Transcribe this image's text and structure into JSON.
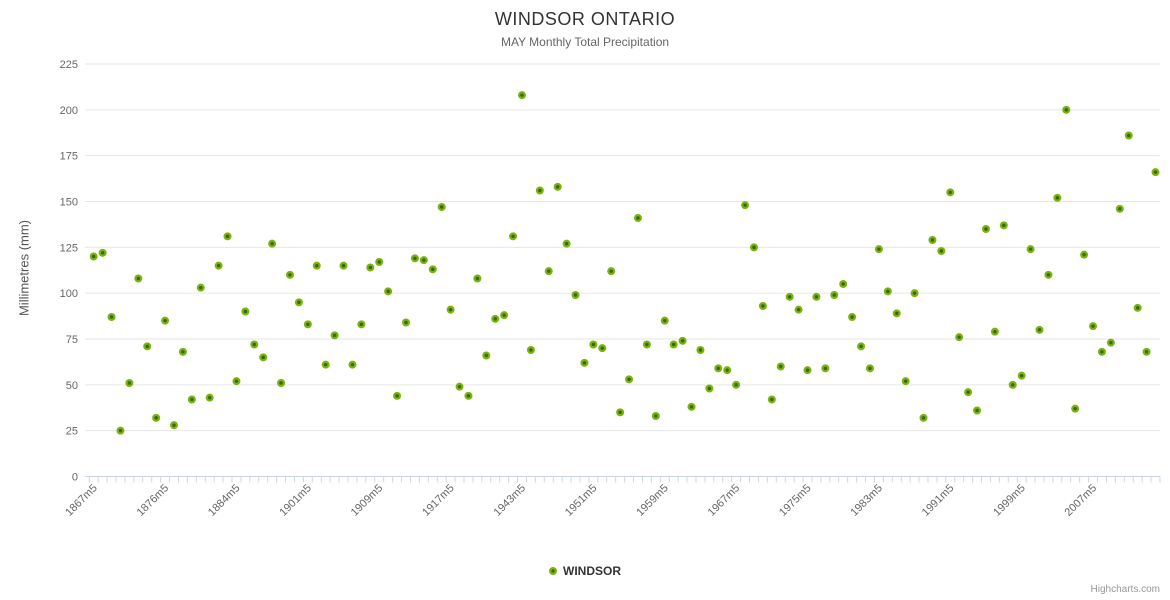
{
  "chart": {
    "title": "WINDSOR ONTARIO",
    "subtitle": "MAY Monthly Total Precipitation",
    "y_axis_title": "Millimetres (mm)",
    "legend_label": "WINDSOR",
    "credits": "Highcharts.com"
  },
  "colors": {
    "point_fill": "#7bb30b",
    "point_core": "#33660a",
    "grid": "#e6e6e6",
    "axis_line": "#ccd6eb",
    "axis_text": "#666666"
  },
  "chart_data": {
    "type": "scatter",
    "title": "WINDSOR ONTARIO",
    "subtitle": "MAY Monthly Total Precipitation",
    "xlabel": "",
    "ylabel": "Millimetres (mm)",
    "ylim": [
      0,
      225
    ],
    "y_ticks": [
      0,
      25,
      50,
      75,
      100,
      125,
      150,
      175,
      200,
      225
    ],
    "grid": true,
    "legend_position": "bottom-center",
    "x_tick_labels": [
      "1867m5",
      "1876m5",
      "1884m5",
      "1901m5",
      "1909m5",
      "1917m5",
      "1943m5",
      "1951m5",
      "1959m5",
      "1967m5",
      "1975m5",
      "1983m5",
      "1991m5",
      "1999m5",
      "2007m5"
    ],
    "x_label_step": 8,
    "series": [
      {
        "name": "WINDSOR",
        "values": [
          120,
          122,
          87,
          25,
          51,
          108,
          71,
          32,
          85,
          28,
          68,
          42,
          103,
          43,
          115,
          131,
          52,
          90,
          72,
          65,
          127,
          51,
          110,
          95,
          83,
          115,
          61,
          77,
          115,
          61,
          83,
          114,
          117,
          101,
          44,
          84,
          119,
          118,
          113,
          147,
          91,
          49,
          44,
          108,
          66,
          86,
          88,
          131,
          208,
          69,
          156,
          112,
          158,
          127,
          99,
          62,
          72,
          70,
          112,
          35,
          53,
          141,
          72,
          33,
          85,
          72,
          74,
          38,
          69,
          48,
          59,
          58,
          50,
          148,
          125,
          93,
          42,
          60,
          98,
          91,
          58,
          98,
          59,
          99,
          105,
          87,
          71,
          59,
          124,
          101,
          89,
          52,
          100,
          32,
          129,
          123,
          155,
          76,
          46,
          36,
          135,
          79,
          137,
          50,
          55,
          124,
          80,
          110,
          152,
          200,
          37,
          121,
          82,
          68,
          73,
          146,
          186,
          92,
          68,
          166
        ]
      }
    ]
  }
}
